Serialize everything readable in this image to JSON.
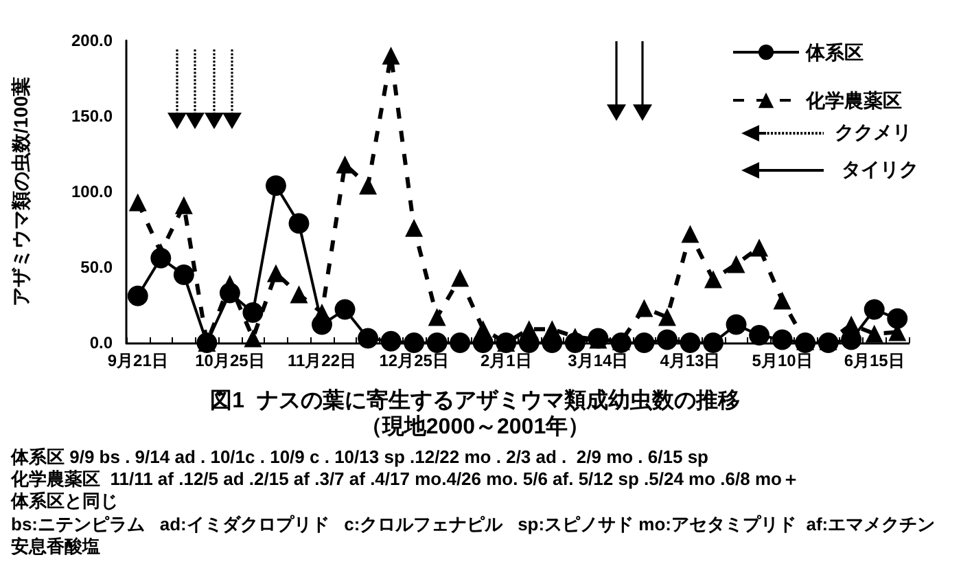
{
  "chart_data": {
    "type": "line",
    "title": "図1  ナスの葉に寄生するアザミウマ類成幼虫数の推移",
    "subtitle": "（現地2000～2001年）",
    "ylabel": "アザミウマ類の虫数/100葉",
    "categories": [
      "9月21日",
      null,
      null,
      null,
      "10月25日",
      null,
      null,
      null,
      "11月22日",
      null,
      null,
      null,
      "12月25日",
      null,
      null,
      null,
      "2月1日",
      null,
      null,
      null,
      "3月14日",
      null,
      null,
      null,
      "4月13日",
      null,
      null,
      null,
      "5月10日",
      null,
      null,
      null,
      "6月15日",
      null
    ],
    "series": [
      {
        "name": "体系区",
        "color": "#000000",
        "marker": "circle",
        "line_style": "solid",
        "values": [
          31,
          56,
          45,
          0,
          33,
          20,
          104,
          79,
          12,
          22,
          3,
          1,
          0,
          0,
          0,
          0,
          0,
          0,
          0,
          0,
          3,
          0,
          0,
          2,
          0,
          0,
          12,
          5,
          2,
          0,
          0,
          2,
          22,
          16
        ]
      },
      {
        "name": "化学農薬区",
        "color": "#000000",
        "marker": "triangle",
        "line_style": "dashed",
        "values": [
          93,
          60,
          91,
          0,
          39,
          3,
          46,
          32,
          20,
          118,
          104,
          190,
          76,
          17,
          43,
          9,
          0,
          9,
          9,
          4,
          2,
          1,
          23,
          17,
          72,
          42,
          52,
          63,
          28,
          1,
          1,
          12,
          6,
          7
        ]
      }
    ],
    "ylim": [
      0,
      200
    ],
    "yticks": [
      {
        "value": 0,
        "label": "0.0"
      },
      {
        "value": 50,
        "label": "50.0"
      },
      {
        "value": 100,
        "label": "100.0"
      },
      {
        "value": 150,
        "label": "150.0"
      },
      {
        "value": 200,
        "label": "200.0"
      }
    ],
    "legend": "top right",
    "annotations": [
      "ククメリ",
      "タイリク",
      "体系区 9/9 bs . 9/14 ad . 10/1c . 10/9 c . 10/13 sp .12/22 mo . 2/3 ad .  2/9 mo . 6/15 sp",
      "化学農薬区  11/11 af .12/5 ad .2/15 af .3/7 af .4/17 mo.4/26 mo. 5/6 af. 5/12 sp .5/24 mo .6/8 mo＋",
      "体系区と同じ",
      "bs:ニテンピラム   ad:イミダクロプリド   c:クロルフェナピル   sp:スピノサド mo:アセタミプリド  af:エマメクチン",
      "安息香酸塩"
    ]
  }
}
